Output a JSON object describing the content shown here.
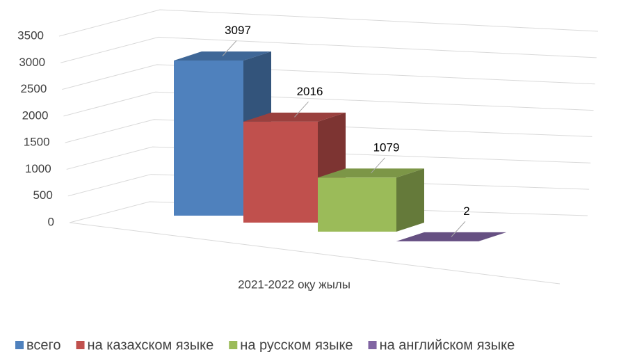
{
  "chart_data": {
    "type": "bar3d",
    "categories": [
      "2021-2022 оқу жылы"
    ],
    "series": [
      {
        "name": "всего",
        "color": "#4f81bd",
        "values": [
          3097
        ]
      },
      {
        "name": "на казахском языке",
        "color": "#c0504d",
        "values": [
          2016
        ]
      },
      {
        "name": "на русском языке",
        "color": "#9bbb59",
        "values": [
          1079
        ]
      },
      {
        "name": "на английском языке",
        "color": "#8064a2",
        "values": [
          2
        ]
      }
    ],
    "ylim": [
      0,
      3500
    ],
    "yticks": [
      0,
      500,
      1000,
      1500,
      2000,
      2500,
      3000,
      3500
    ],
    "grid": true,
    "legend": "bottom"
  }
}
